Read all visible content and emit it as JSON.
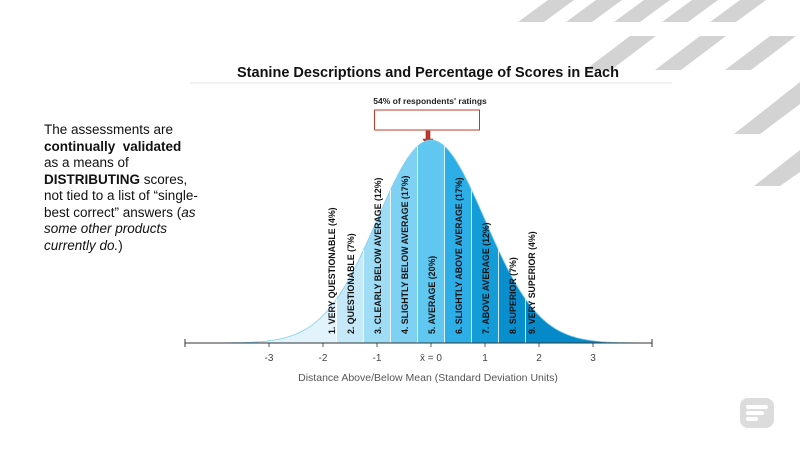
{
  "slide": {
    "side_text": {
      "p1": "The assessments are",
      "p2": "continually",
      "p3": "validated",
      "p4": "as a means of",
      "p5": "DISTRIBUTING",
      "p6": "scores, not tied to a list of “single-best correct” answers (",
      "p7": "as some other products currently do.",
      "p8": ")"
    }
  },
  "chart_data": {
    "type": "area",
    "title": "Stanine Descriptions and Percentage of Scores in Each",
    "xlabel": "Distance Above/Below Mean (Standard Deviation Units)",
    "xlim": [
      -4.0,
      4.0
    ],
    "x_ticks": [
      -3,
      -2,
      -1,
      0,
      1,
      2,
      3
    ],
    "x_tick_labels": [
      "-3",
      "-2",
      "-1",
      "x̄ = 0",
      "1",
      "2",
      "3"
    ],
    "curve": "normal",
    "annotation": "54% of respondents' ratings",
    "annotation_span": [
      -0.75,
      0.75
    ],
    "colors": {
      "band_light": "#dbeefa",
      "band_mid": "#5fc7f0",
      "band_dark": "#0089c9",
      "divider": "#ffffff",
      "arrow": "#c0392b",
      "bracket": "#c0392b",
      "decor": "#d0d0d0"
    },
    "stanines": [
      {
        "stanine": 1,
        "label": "1. VERY QUESTIONABLE (4%)",
        "percent": 4,
        "from": -4.0,
        "to": -1.75
      },
      {
        "stanine": 2,
        "label": "2. QUESTIONABLE (7%)",
        "percent": 7,
        "from": -1.75,
        "to": -1.25
      },
      {
        "stanine": 3,
        "label": "3. CLEARLY BELOW AVERAGE (12%)",
        "percent": 12,
        "from": -1.25,
        "to": -0.75
      },
      {
        "stanine": 4,
        "label": "4. SLIGHTLY BELOW AVERAGE (17%)",
        "percent": 17,
        "from": -0.75,
        "to": -0.25
      },
      {
        "stanine": 5,
        "label": "5. AVERAGE (20%)",
        "percent": 20,
        "from": -0.25,
        "to": 0.25
      },
      {
        "stanine": 6,
        "label": "6. SLIGHTLY ABOVE AVERAGE (17%)",
        "percent": 17,
        "from": 0.25,
        "to": 0.75
      },
      {
        "stanine": 7,
        "label": "7. ABOVE AVERAGE (12%)",
        "percent": 12,
        "from": 0.75,
        "to": 1.25
      },
      {
        "stanine": 8,
        "label": "8. SUPERIOR (7%)",
        "percent": 7,
        "from": 1.25,
        "to": 1.75
      },
      {
        "stanine": 9,
        "label": "9. VERY SUPERIOR (4%)",
        "percent": 4,
        "from": 1.75,
        "to": 4.0
      }
    ]
  }
}
